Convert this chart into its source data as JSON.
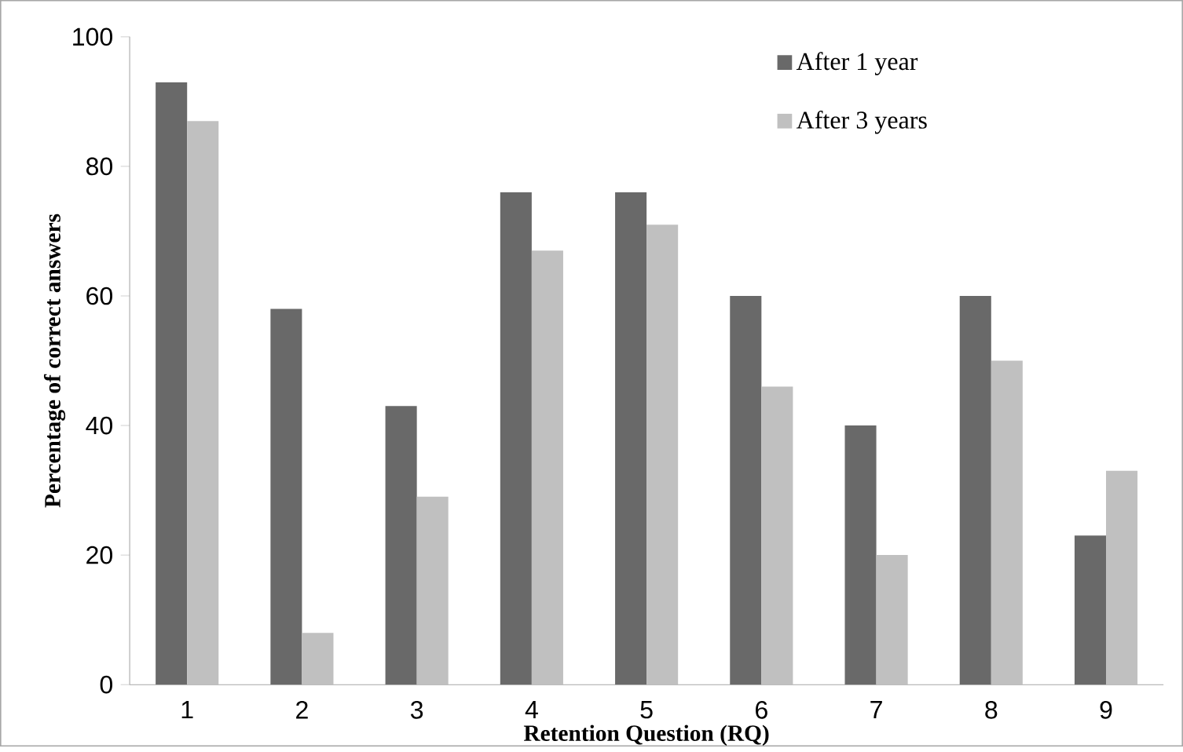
{
  "chart_data": {
    "type": "bar",
    "xlabel": "Retention Question (RQ)",
    "ylabel": "Percentage of correct answers",
    "categories": [
      "1",
      "2",
      "3",
      "4",
      "5",
      "6",
      "7",
      "8",
      "9"
    ],
    "series": [
      {
        "name": "After 1 year",
        "color": "#696969",
        "values": [
          93,
          58,
          43,
          76,
          76,
          60,
          40,
          60,
          23
        ]
      },
      {
        "name": "After 3 years",
        "color": "#c0c0c0",
        "values": [
          87,
          8,
          29,
          67,
          71,
          46,
          20,
          50,
          33
        ]
      }
    ],
    "ylim": [
      0,
      100
    ],
    "yticks": [
      0,
      20,
      40,
      60,
      80,
      100
    ],
    "grid": false,
    "legend": "top right"
  }
}
